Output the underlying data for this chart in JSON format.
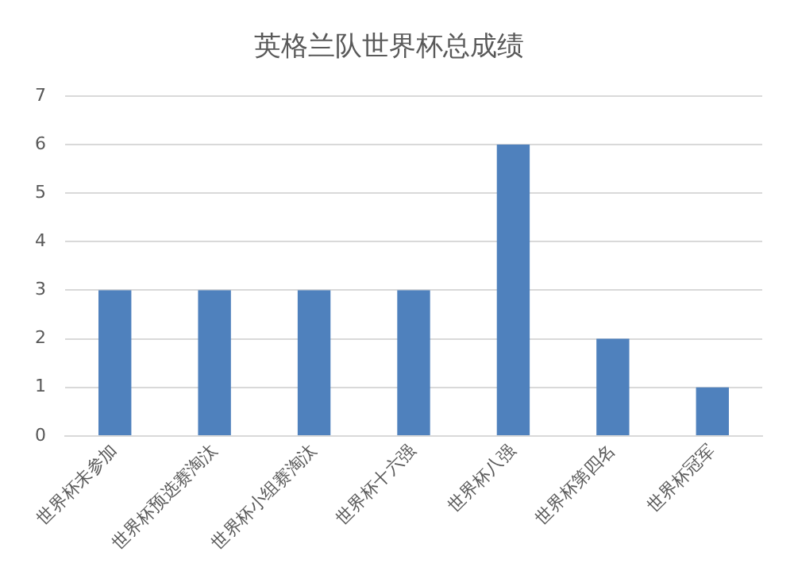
{
  "chart_data": {
    "type": "bar",
    "title": "英格兰队世界杯总成绩",
    "categories": [
      "世界杯未参加",
      "世界杯预选赛淘汰",
      "世界杯小组赛淘汰",
      "世界杯十六强",
      "世界杯八强",
      "世界杯第四名",
      "世界杯冠军"
    ],
    "values": [
      3,
      3,
      3,
      3,
      6,
      2,
      1
    ],
    "color": "#4f81bd",
    "ylim": [
      0,
      7
    ],
    "yticks": [
      0,
      1,
      2,
      3,
      4,
      5,
      6,
      7
    ],
    "grid": "y",
    "legend": false
  }
}
